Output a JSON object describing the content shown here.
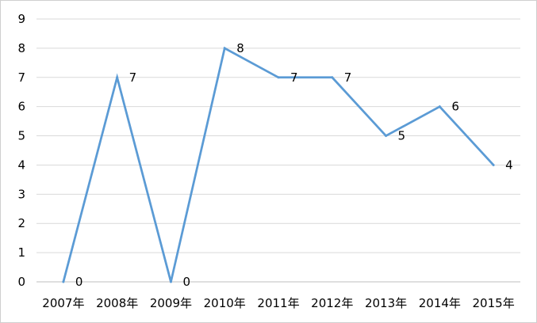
{
  "chart_data": {
    "type": "line",
    "categories": [
      "2007年",
      "2008年",
      "2009年",
      "2010年",
      "2011年",
      "2012年",
      "2013年",
      "2014年",
      "2015年"
    ],
    "series": [
      {
        "values": [
          0,
          7,
          0,
          8,
          7,
          7,
          5,
          6,
          4
        ],
        "color": "#5b9bd5"
      }
    ],
    "ylim": [
      0,
      9
    ],
    "yticks": [
      0,
      1,
      2,
      3,
      4,
      5,
      6,
      7,
      8,
      9
    ],
    "grid": true,
    "gridColor": "#d9d9d9",
    "data_labels": true,
    "legend": "none"
  }
}
